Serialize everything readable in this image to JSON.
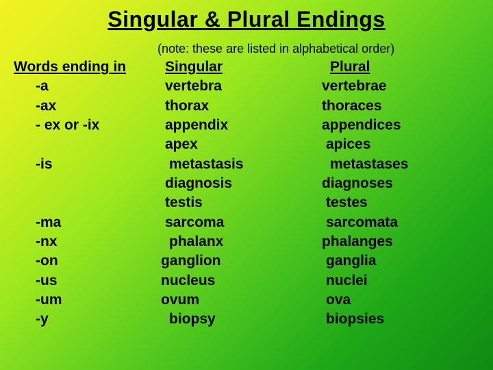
{
  "title": "Singular & Plural Endings",
  "note": "(note: these are listed in alphabetical order)",
  "headers": {
    "col1": "Words ending in",
    "col2": "Singular",
    "col3": "Plural"
  },
  "rows": [
    {
      "ending": "-a",
      "singular": "vertebra",
      "plural": "vertebrae"
    },
    {
      "ending": "-ax",
      "singular": "thorax",
      "plural": "thoraces"
    },
    {
      "ending": "- ex  or  -ix",
      "singular": "appendix",
      "plural": "appendices"
    },
    {
      "ending": "",
      "singular": "apex",
      "plural": "apices"
    },
    {
      "ending": "-is",
      "singular": "metastasis",
      "plural": "metastases"
    },
    {
      "ending": "",
      "singular": "diagnosis",
      "plural": "diagnoses"
    },
    {
      "ending": "",
      "singular": "testis",
      "plural": "testes"
    },
    {
      "ending": "-ma",
      "singular": "sarcoma",
      "plural": "sarcomata"
    },
    {
      "ending": "-nx",
      "singular": "phalanx",
      "plural": "phalanges"
    },
    {
      "ending": "-on",
      "singular": "ganglion",
      "plural": "ganglia"
    },
    {
      "ending": "-us",
      "singular": "nucleus",
      "plural": "nuclei"
    },
    {
      "ending": "-um",
      "singular": "ovum",
      "plural": "ova"
    },
    {
      "ending": "-y",
      "singular": "biopsy",
      "plural": "biopsies"
    }
  ],
  "style": {
    "title_fontsize": 32,
    "body_fontsize": 21,
    "note_fontsize": 18,
    "font_family": "Verdana",
    "text_color": "#000000",
    "gradient_stops": [
      "#f4f323",
      "#d8f020",
      "#9de81e",
      "#4fc71e",
      "#1ea818",
      "#0f8a12"
    ]
  }
}
